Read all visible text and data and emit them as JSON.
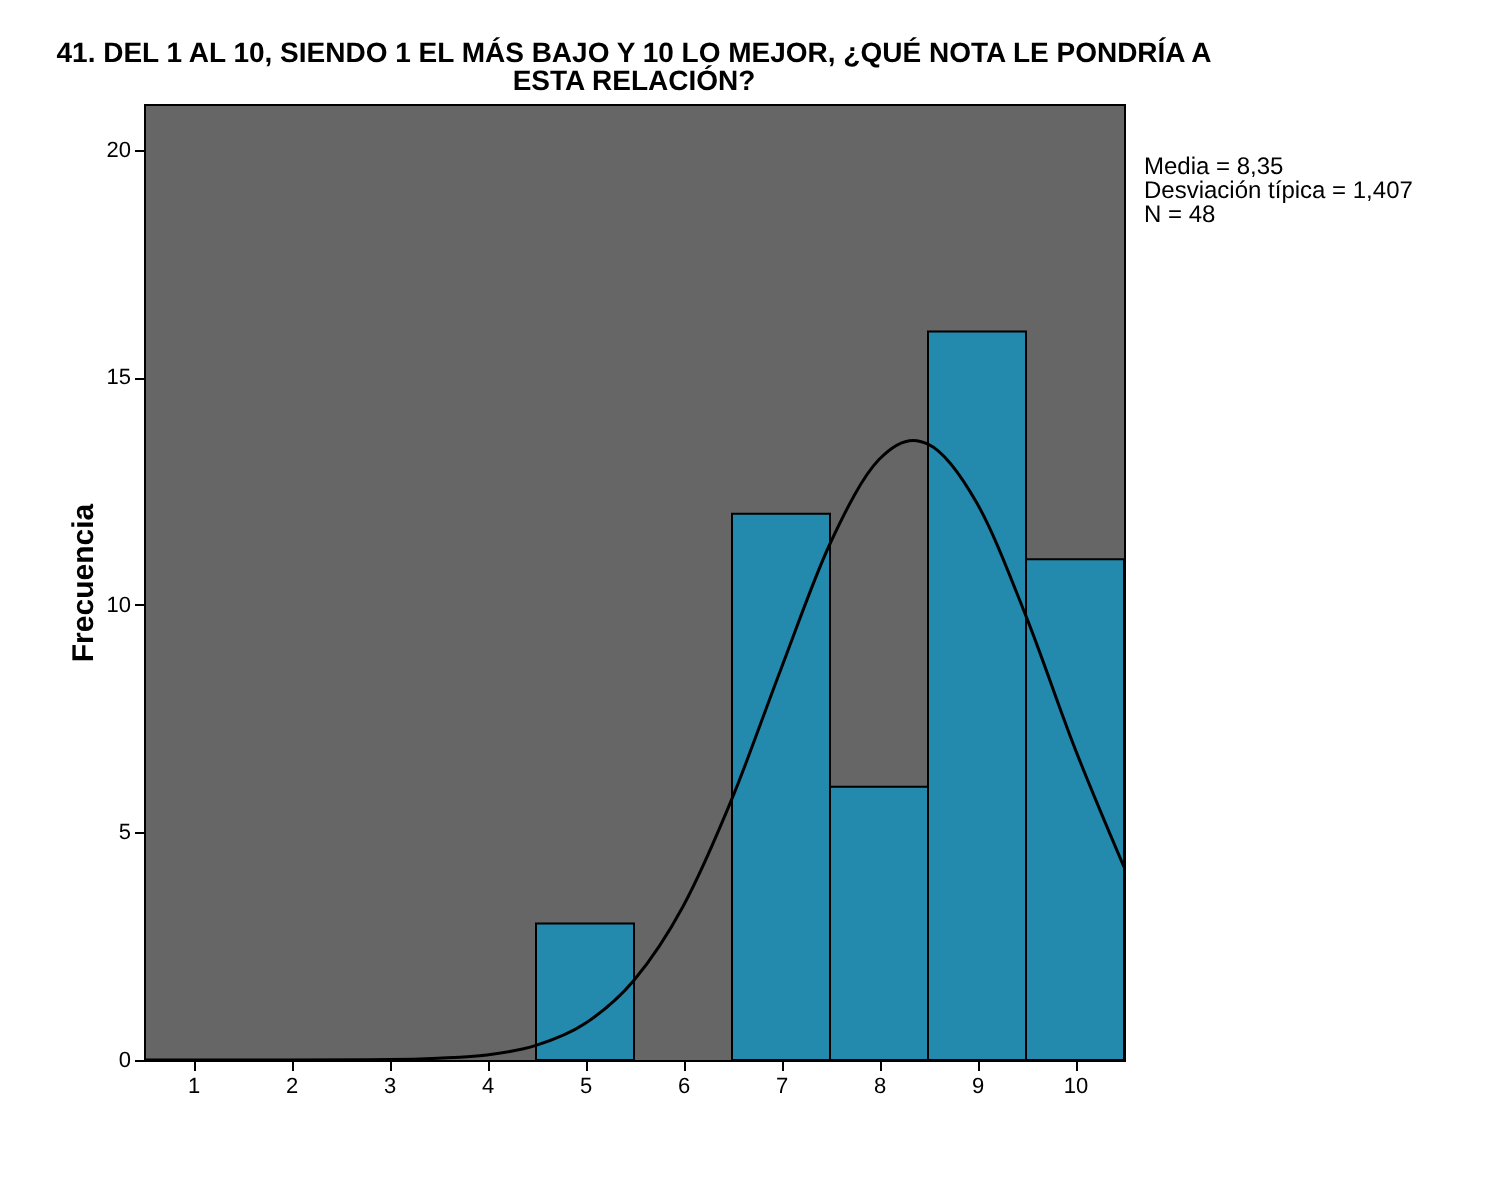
{
  "chart_data": {
    "type": "histogram",
    "title": "41. DEL 1 AL 10, SIENDO 1 EL MÁS BAJO Y 10 LO MEJOR, ¿QUÉ NOTA LE PONDRÍA A ESTA RELACIÓN?",
    "ylabel": "Frecuencia",
    "annotations": [
      "Media = 8,35",
      "Desviación típica = 1,407",
      "N = 48"
    ],
    "series": [
      {
        "color": "#2389ad",
        "bins": [
          0.5,
          1.5,
          2.5,
          3.5,
          4.5,
          5.5,
          6.5,
          7.5,
          8.5,
          9.5,
          10.5
        ],
        "values": [
          0,
          0,
          0,
          0,
          3,
          0,
          12,
          6,
          16,
          11
        ]
      },
      {
        "type": "line",
        "color": "#000000",
        "x": [
          0.5,
          1,
          2,
          3,
          3.5,
          4,
          4.5,
          5,
          5.5,
          6,
          6.5,
          7,
          7.5,
          8,
          8.35,
          8.5,
          9,
          9.5,
          10,
          10.5
        ],
        "values": [
          0,
          0,
          0,
          0.01,
          0.04,
          0.11,
          0.32,
          0.8,
          1.75,
          3.37,
          5.74,
          8.59,
          11.34,
          13.19,
          13.61,
          13.53,
          12.23,
          9.75,
          6.84,
          4.24
        ]
      }
    ],
    "xlim": [
      0.5,
      10.5
    ],
    "xticks": [
      1,
      2,
      3,
      4,
      5,
      6,
      7,
      8,
      9,
      10
    ],
    "ylim": [
      0,
      21
    ],
    "yticks": [
      0,
      5,
      10,
      15,
      20
    ],
    "grid": false,
    "line_style": "solid",
    "marker": "none"
  }
}
